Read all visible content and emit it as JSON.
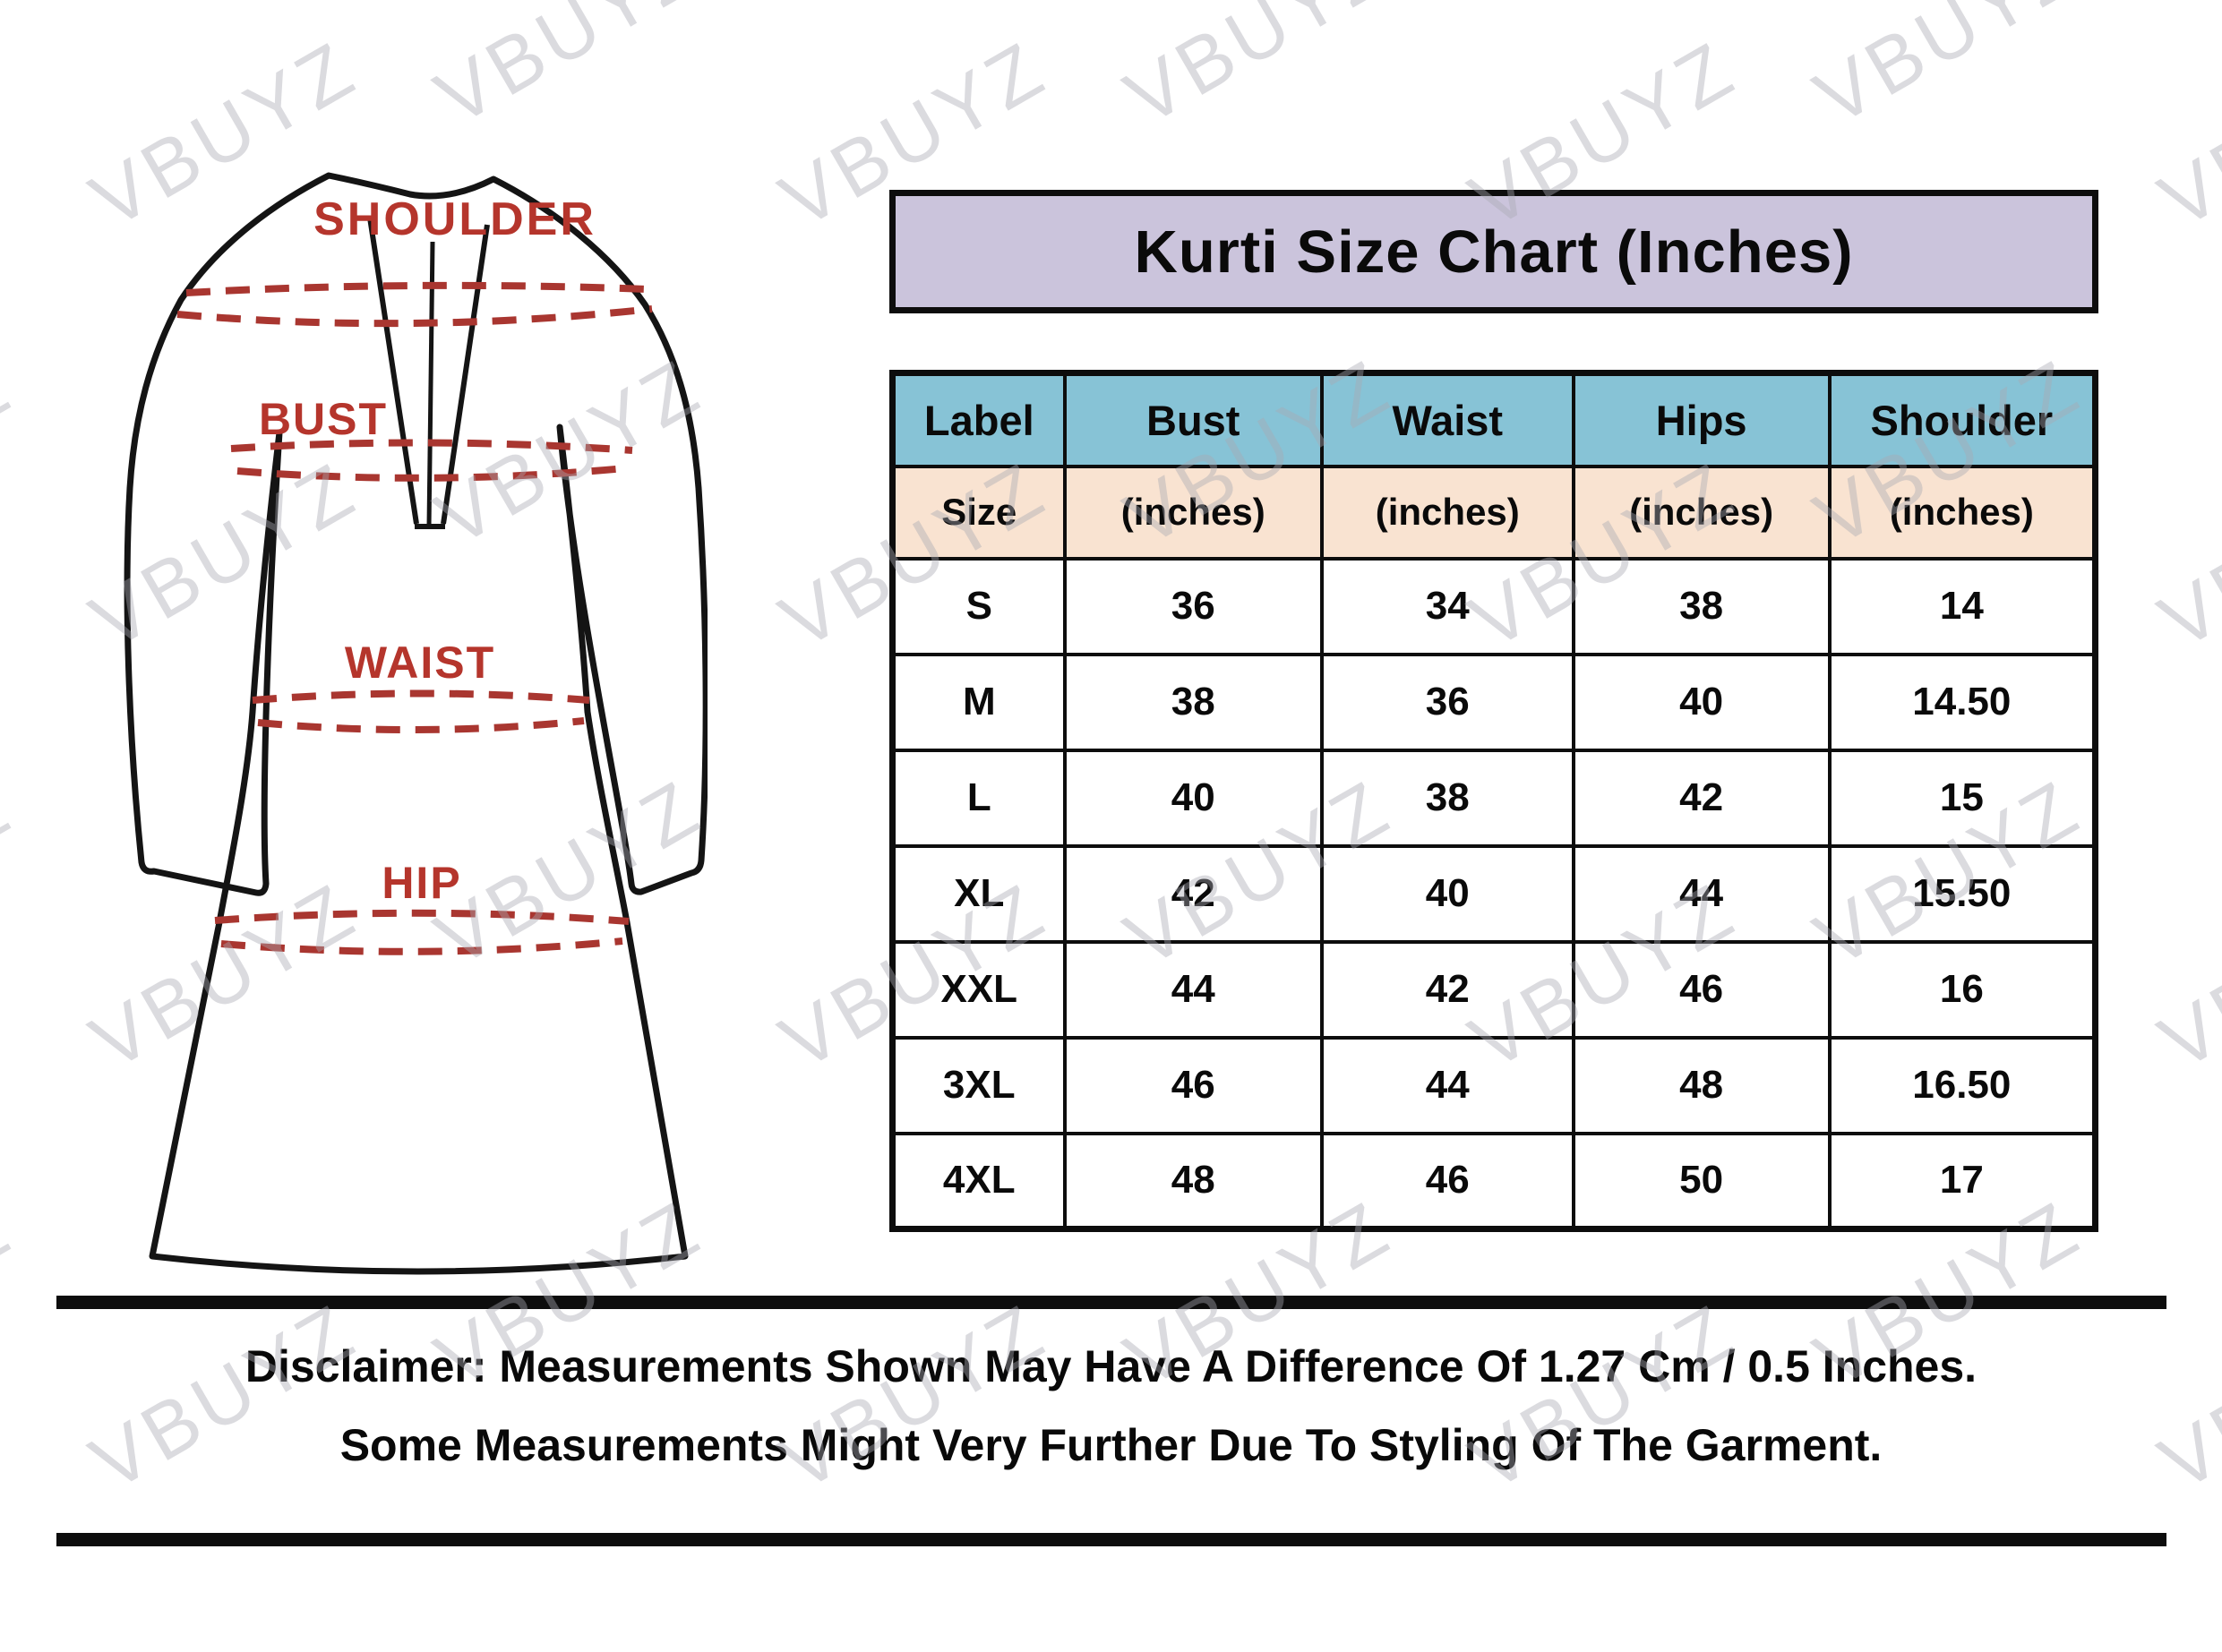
{
  "watermark": {
    "text": "VBUYZ",
    "color_rgba": "rgba(170,170,178,0.42)"
  },
  "title": {
    "text": "Kurti Size Chart (Inches)",
    "bg_color": "#cbc4dc"
  },
  "diagram": {
    "labels": {
      "shoulder": "SHOULDER",
      "bust": "BUST",
      "waist": "WAIST",
      "hip": "HIP"
    },
    "label_color": "#b5352c",
    "dash_color": "#a93630",
    "outline_color": "#141414"
  },
  "table": {
    "header": {
      "bg_color": "#87c3d6",
      "cells": [
        "Label",
        "Bust",
        "Waist",
        "Hips",
        "Shoulder"
      ]
    },
    "subheader": {
      "bg_color": "#f9e3d1",
      "cells": [
        "Size",
        "(inches)",
        "(inches)",
        "(inches)",
        "(inches)"
      ]
    },
    "rows": [
      [
        "S",
        "36",
        "34",
        "38",
        "14"
      ],
      [
        "M",
        "38",
        "36",
        "40",
        "14.50"
      ],
      [
        "L",
        "40",
        "38",
        "42",
        "15"
      ],
      [
        "XL",
        "42",
        "40",
        "44",
        "15.50"
      ],
      [
        "XXL",
        "44",
        "42",
        "46",
        "16"
      ],
      [
        "3XL",
        "46",
        "44",
        "48",
        "16.50"
      ],
      [
        "4XL",
        "48",
        "46",
        "50",
        "17"
      ]
    ]
  },
  "disclaimer": {
    "line1": "Disclaimer: Measurements Shown May Have A Difference Of 1.27 Cm / 0.5 Inches.",
    "line2": "Some Measurements Might Very Further Due To Styling Of The Garment."
  },
  "chart_data": {
    "type": "table",
    "title": "Kurti Size Chart (Inches)",
    "columns": [
      "Label / Size",
      "Bust (inches)",
      "Waist (inches)",
      "Hips (inches)",
      "Shoulder (inches)"
    ],
    "rows": [
      {
        "label": "S",
        "bust": 36,
        "waist": 34,
        "hips": 38,
        "shoulder": 14
      },
      {
        "label": "M",
        "bust": 38,
        "waist": 36,
        "hips": 40,
        "shoulder": 14.5
      },
      {
        "label": "L",
        "bust": 40,
        "waist": 38,
        "hips": 42,
        "shoulder": 15
      },
      {
        "label": "XL",
        "bust": 42,
        "waist": 40,
        "hips": 44,
        "shoulder": 15.5
      },
      {
        "label": "XXL",
        "bust": 44,
        "waist": 42,
        "hips": 46,
        "shoulder": 16
      },
      {
        "label": "3XL",
        "bust": 46,
        "waist": 44,
        "hips": 48,
        "shoulder": 16.5
      },
      {
        "label": "4XL",
        "bust": 48,
        "waist": 46,
        "hips": 50,
        "shoulder": 17
      }
    ]
  }
}
